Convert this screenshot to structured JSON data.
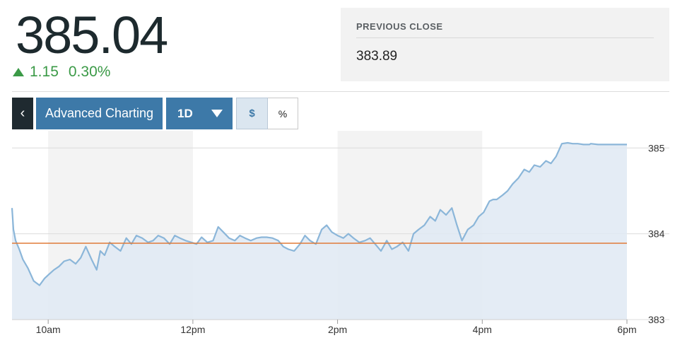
{
  "quote": {
    "price": "385.04",
    "change": "1.15",
    "change_pct": "0.30%",
    "direction": "up",
    "up_color": "#3b9a47"
  },
  "previous_close": {
    "label": "PREVIOUS CLOSE",
    "value": "383.89"
  },
  "toolbar": {
    "back_icon": "chevron-left-icon",
    "back_glyph": "‹",
    "advanced_label": "Advanced Charting",
    "range_label": "1D",
    "range_icon": "caret-down-icon",
    "dollar_label": "$",
    "percent_label": "%",
    "active_mode": "$"
  },
  "chart_data": {
    "type": "area",
    "x_ticks": [
      "10am",
      "12pm",
      "2pm",
      "4pm",
      "6pm"
    ],
    "y_ticks": [
      "385",
      "384",
      "383"
    ],
    "ylim": [
      383,
      385.2
    ],
    "xlim": [
      9.5,
      18.0
    ],
    "reference_line": {
      "value": 383.89,
      "color": "#e07b39"
    },
    "line_color": "#8bb6d9",
    "fill_color": "#dfe9f3",
    "shaded_hours": [
      [
        10,
        12
      ],
      [
        14,
        16
      ]
    ],
    "series": [
      {
        "x": [
          9.5,
          9.52,
          9.55,
          9.6,
          9.65,
          9.72,
          9.8,
          9.88,
          9.95,
          10.0,
          10.08,
          10.15,
          10.22,
          10.3,
          10.38,
          10.45,
          10.52,
          10.6,
          10.67,
          10.72,
          10.78,
          10.85,
          10.92,
          11.0,
          11.08,
          11.15,
          11.22,
          11.3,
          11.38,
          11.45,
          11.52,
          11.6,
          11.68,
          11.75,
          11.82,
          11.9,
          11.98,
          12.05,
          12.12,
          12.2,
          12.28,
          12.35,
          12.42,
          12.5,
          12.58,
          12.65,
          12.72,
          12.8,
          12.88,
          12.95,
          13.02,
          13.1,
          13.18,
          13.25,
          13.32,
          13.4,
          13.48,
          13.55,
          13.62,
          13.7,
          13.78,
          13.85,
          13.92,
          14.0,
          14.08,
          14.15,
          14.22,
          14.3,
          14.38,
          14.45,
          14.52,
          14.6,
          14.68,
          14.75,
          14.82,
          14.9,
          14.98,
          15.05,
          15.12,
          15.2,
          15.28,
          15.35,
          15.42,
          15.5,
          15.58,
          15.65,
          15.72,
          15.8,
          15.88,
          15.95,
          16.02,
          16.1,
          16.15,
          16.2,
          16.28,
          16.35,
          16.42,
          16.5,
          16.58,
          16.65,
          16.72,
          16.8,
          16.88,
          16.95,
          17.02,
          17.1,
          17.18,
          17.25,
          17.32,
          17.4,
          17.48,
          17.5,
          17.6,
          17.7,
          17.8,
          17.9,
          18.0
        ],
        "y": [
          384.3,
          384.05,
          383.92,
          383.82,
          383.7,
          383.6,
          383.45,
          383.4,
          383.48,
          383.52,
          383.58,
          383.62,
          383.68,
          383.7,
          383.65,
          383.72,
          383.85,
          383.7,
          383.58,
          383.8,
          383.75,
          383.9,
          383.85,
          383.8,
          383.95,
          383.88,
          383.98,
          383.95,
          383.9,
          383.92,
          383.98,
          383.95,
          383.88,
          383.98,
          383.95,
          383.92,
          383.9,
          383.88,
          383.96,
          383.9,
          383.92,
          384.08,
          384.02,
          383.95,
          383.92,
          383.98,
          383.95,
          383.92,
          383.95,
          383.96,
          383.96,
          383.95,
          383.92,
          383.85,
          383.82,
          383.8,
          383.88,
          383.98,
          383.92,
          383.88,
          384.05,
          384.1,
          384.02,
          383.98,
          383.95,
          384.0,
          383.95,
          383.9,
          383.92,
          383.95,
          383.88,
          383.8,
          383.92,
          383.82,
          383.85,
          383.9,
          383.8,
          384.0,
          384.05,
          384.1,
          384.2,
          384.15,
          384.28,
          384.22,
          384.3,
          384.1,
          383.92,
          384.05,
          384.1,
          384.2,
          384.25,
          384.38,
          384.4,
          384.4,
          384.45,
          384.5,
          384.58,
          384.65,
          384.75,
          384.72,
          384.8,
          384.78,
          384.85,
          384.82,
          384.9,
          385.05,
          385.06,
          385.05,
          385.05,
          385.04,
          385.04,
          385.05,
          385.04,
          385.04,
          385.04,
          385.04,
          385.04
        ]
      }
    ]
  }
}
